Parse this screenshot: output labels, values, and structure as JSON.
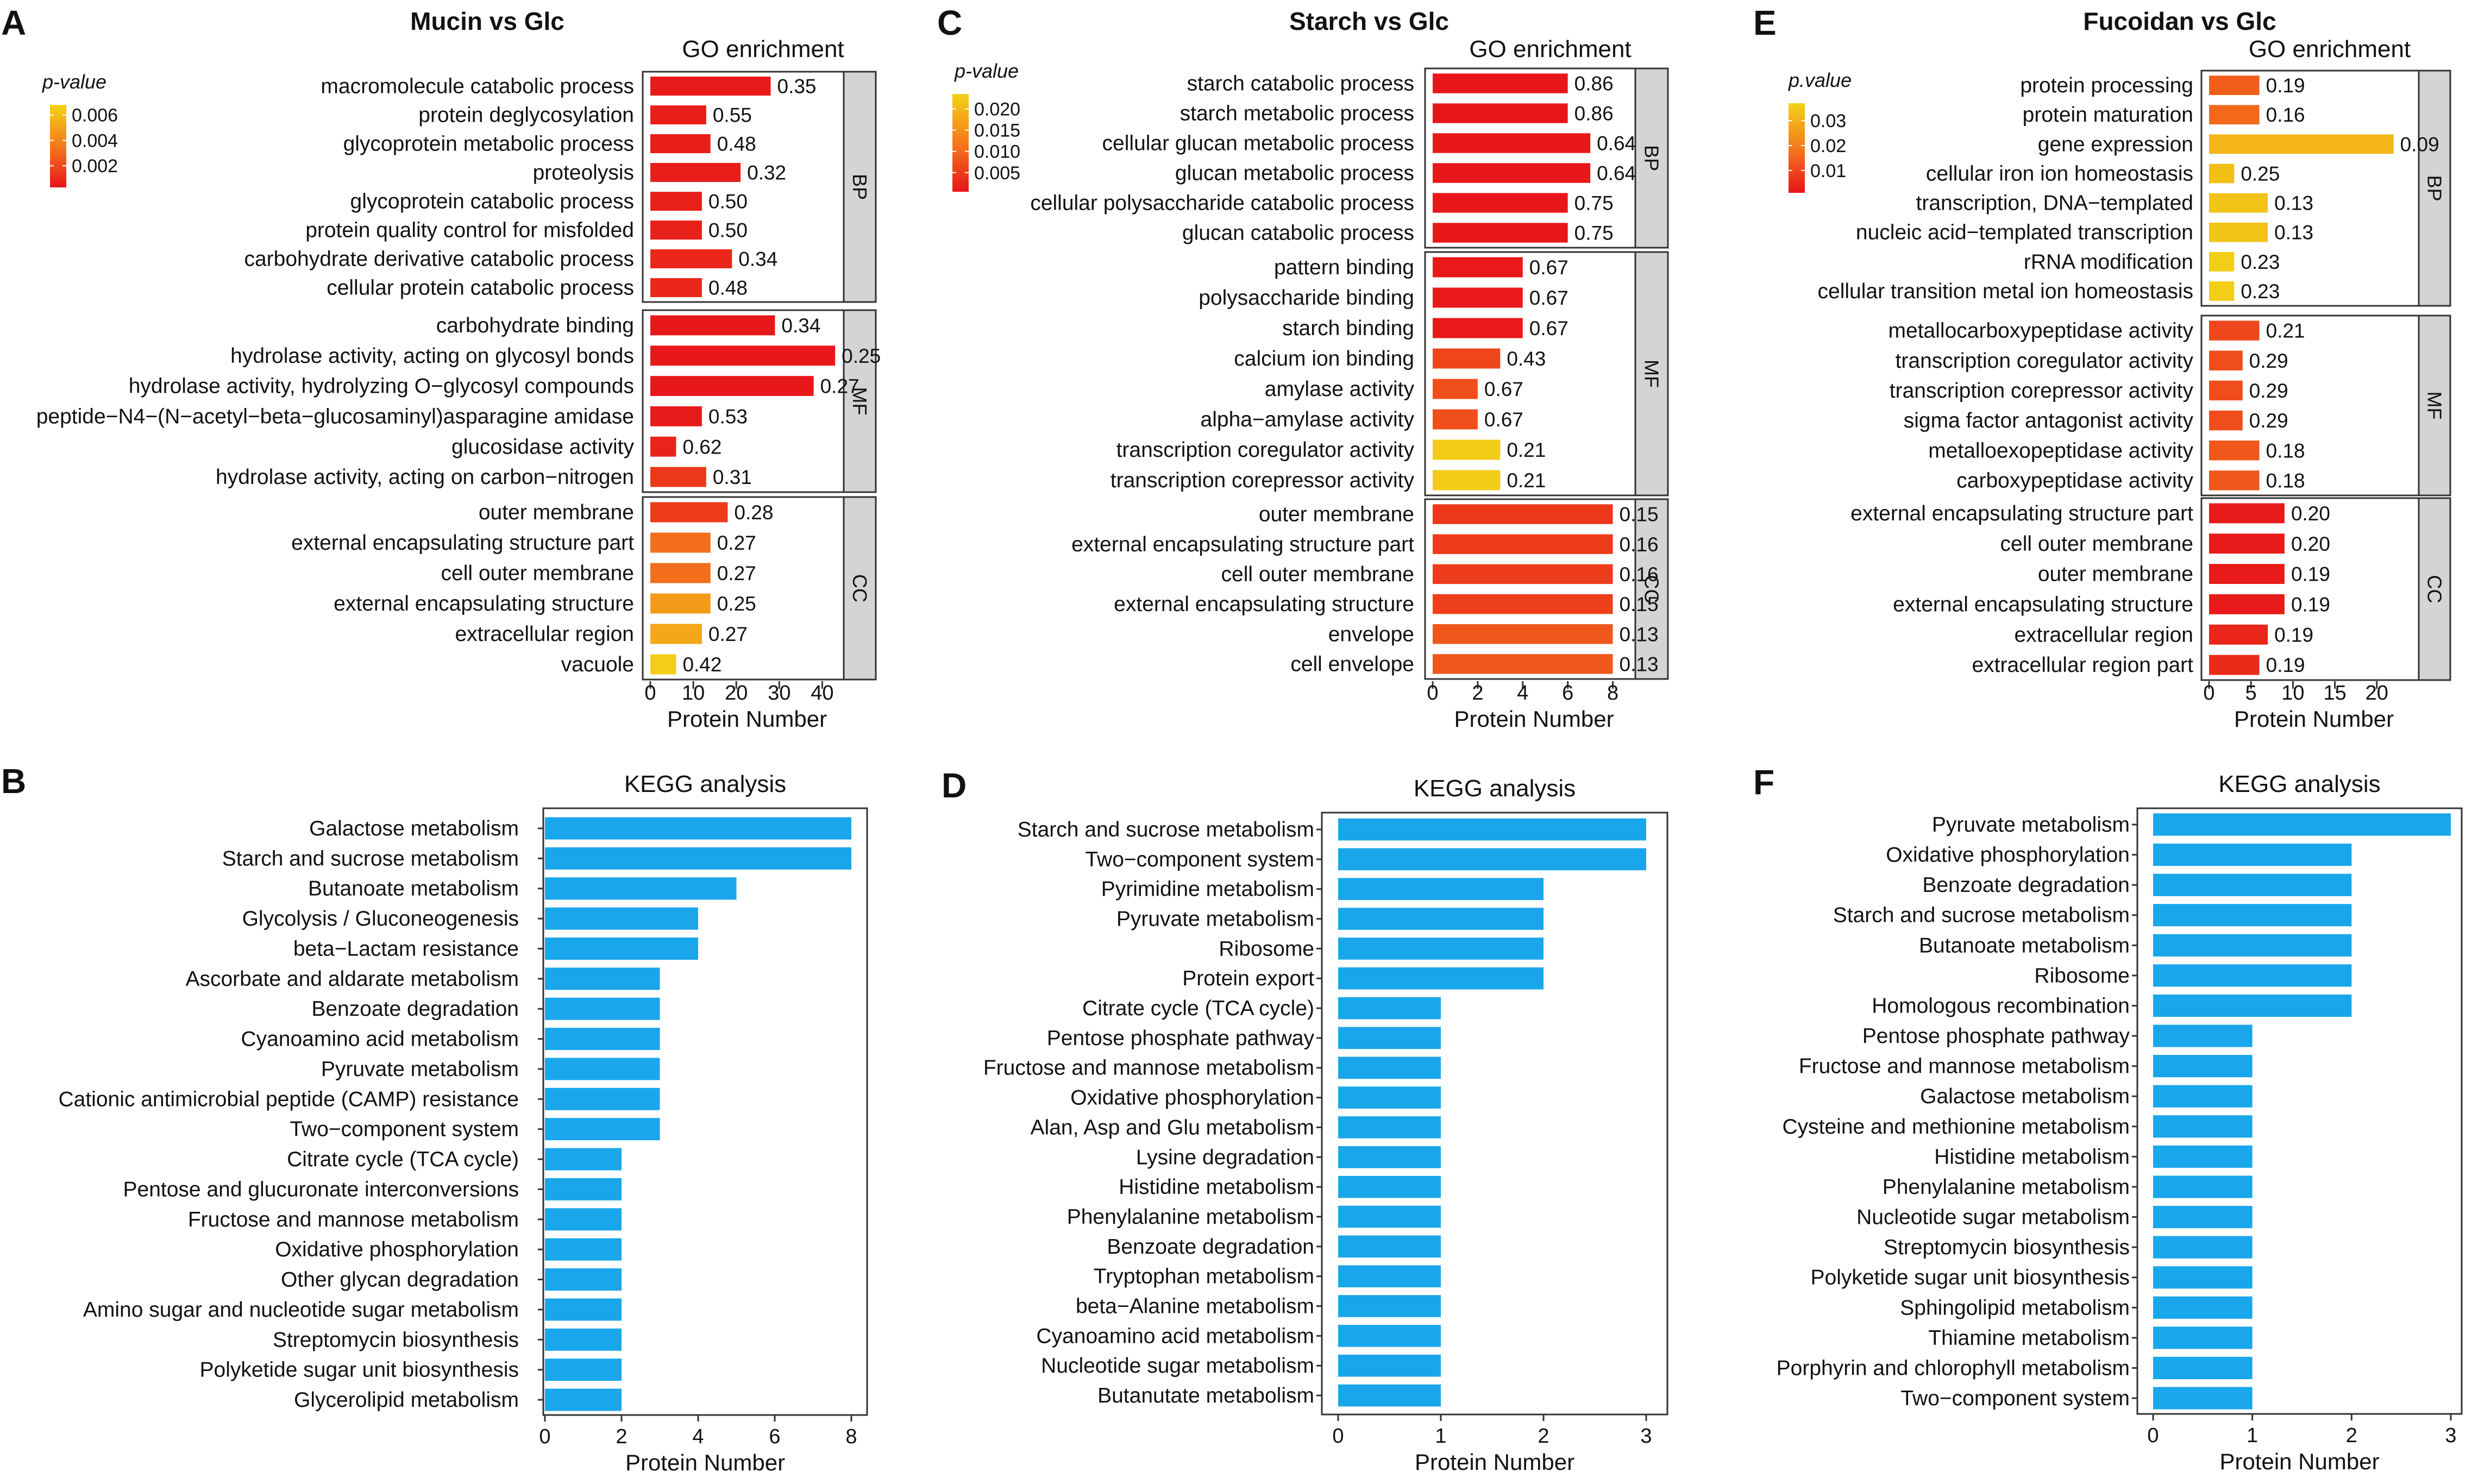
{
  "colors": {
    "kegg_bar": "#1aa6ea",
    "strip_fill": "#d4d4d4",
    "low_p": "#e8141a",
    "mid_p": "#f47a1c",
    "high_p": "#f2d316"
  },
  "chart_data": [
    {
      "panel": "A",
      "type": "bar",
      "orientation": "horizontal",
      "title": "Mucin vs Glc",
      "subtitle": "GO enrichment",
      "xlabel": "Protein Number",
      "xlim": [
        0,
        45
      ],
      "xticks": [
        0,
        10,
        20,
        30,
        40
      ],
      "legend": {
        "title": "p-value",
        "ticks": [
          "0.006",
          "0.004",
          "0.002"
        ],
        "range": [
          0.0003,
          0.0068
        ]
      },
      "groups": [
        {
          "name": "BP",
          "terms": [
            {
              "term": "macromolecule catabolic process",
              "value": 28,
              "label": "0.35",
              "p": 0.0005
            },
            {
              "term": "protein deglycosylation",
              "value": 13,
              "label": "0.55",
              "p": 0.0006
            },
            {
              "term": "glycoprotein metabolic process",
              "value": 14,
              "label": "0.48",
              "p": 0.0006
            },
            {
              "term": "proteolysis",
              "value": 21,
              "label": "0.32",
              "p": 0.0006
            },
            {
              "term": "glycoprotein catabolic process",
              "value": 12,
              "label": "0.50",
              "p": 0.0007
            },
            {
              "term": "protein quality control for misfolded",
              "value": 12,
              "label": "0.50",
              "p": 0.0007
            },
            {
              "term": "carbohydrate derivative catabolic process",
              "value": 19,
              "label": "0.34",
              "p": 0.0009
            },
            {
              "term": "cellular protein catabolic process",
              "value": 12,
              "label": "0.48",
              "p": 0.0009
            }
          ]
        },
        {
          "name": "MF",
          "terms": [
            {
              "term": "carbohydrate binding",
              "value": 29,
              "label": "0.34",
              "p": 0.0004
            },
            {
              "term": "hydrolase activity, acting on glycosyl bonds",
              "value": 43,
              "label": "0.25",
              "p": 0.0004
            },
            {
              "term": "hydrolase activity, hydrolyzing O−glycosyl compounds",
              "value": 38,
              "label": "0.27",
              "p": 0.0004
            },
            {
              "term": "peptide−N4−(N−acetyl−beta−glucosaminyl)asparagine amidase",
              "value": 12,
              "label": "0.53",
              "p": 0.0005
            },
            {
              "term": "glucosidase activity",
              "value": 6,
              "label": "0.62",
              "p": 0.0008
            },
            {
              "term": "hydrolase activity, acting on carbon−nitrogen",
              "value": 13,
              "label": "0.31",
              "p": 0.0014
            }
          ]
        },
        {
          "name": "CC",
          "terms": [
            {
              "term": "outer membrane",
              "value": 18,
              "label": "0.28",
              "p": 0.0015
            },
            {
              "term": "external encapsulating structure part",
              "value": 14,
              "label": "0.27",
              "p": 0.0032
            },
            {
              "term": "cell outer membrane",
              "value": 14,
              "label": "0.27",
              "p": 0.0032
            },
            {
              "term": "external encapsulating structure",
              "value": 14,
              "label": "0.25",
              "p": 0.0048
            },
            {
              "term": "extracellular region",
              "value": 12,
              "label": "0.27",
              "p": 0.0052
            },
            {
              "term": "vacuole",
              "value": 6,
              "label": "0.42",
              "p": 0.0066
            }
          ]
        }
      ]
    },
    {
      "panel": "C",
      "type": "bar",
      "orientation": "horizontal",
      "title": "Starch vs Glc",
      "subtitle": "GO enrichment",
      "xlabel": "Protein Number",
      "xlim": [
        0,
        9
      ],
      "xticks": [
        0,
        2,
        4,
        6,
        8
      ],
      "legend": {
        "title": "p-value",
        "ticks": [
          "0.020",
          "0.015",
          "0.010",
          "0.005"
        ],
        "range": [
          0.0005,
          0.0235
        ]
      },
      "groups": [
        {
          "name": "BP",
          "terms": [
            {
              "term": "starch catabolic process",
              "value": 6,
              "label": "0.86",
              "p": 0.0007
            },
            {
              "term": "starch metabolic process",
              "value": 6,
              "label": "0.86",
              "p": 0.0007
            },
            {
              "term": "cellular glucan metabolic process",
              "value": 7,
              "label": "0.64",
              "p": 0.0008
            },
            {
              "term": "glucan metabolic process",
              "value": 7,
              "label": "0.64",
              "p": 0.0008
            },
            {
              "term": "cellular polysaccharide catabolic process",
              "value": 6,
              "label": "0.75",
              "p": 0.0009
            },
            {
              "term": "glucan catabolic process",
              "value": 6,
              "label": "0.75",
              "p": 0.0009
            }
          ]
        },
        {
          "name": "MF",
          "terms": [
            {
              "term": "pattern binding",
              "value": 4,
              "label": "0.67",
              "p": 0.001
            },
            {
              "term": "polysaccharide binding",
              "value": 4,
              "label": "0.67",
              "p": 0.001
            },
            {
              "term": "starch binding",
              "value": 4,
              "label": "0.67",
              "p": 0.001
            },
            {
              "term": "calcium ion binding",
              "value": 3,
              "label": "0.43",
              "p": 0.006
            },
            {
              "term": "amylase activity",
              "value": 2,
              "label": "0.67",
              "p": 0.0072
            },
            {
              "term": "alpha−amylase activity",
              "value": 2,
              "label": "0.67",
              "p": 0.0072
            },
            {
              "term": "transcription coregulator activity",
              "value": 3,
              "label": "0.21",
              "p": 0.0225
            },
            {
              "term": "transcription corepressor activity",
              "value": 3,
              "label": "0.21",
              "p": 0.0225
            }
          ]
        },
        {
          "name": "CC",
          "terms": [
            {
              "term": "outer membrane",
              "value": 8,
              "label": "0.15",
              "p": 0.0045
            },
            {
              "term": "external encapsulating structure part",
              "value": 8,
              "label": "0.16",
              "p": 0.005
            },
            {
              "term": "cell outer membrane",
              "value": 8,
              "label": "0.16",
              "p": 0.005
            },
            {
              "term": "external encapsulating structure",
              "value": 8,
              "label": "0.15",
              "p": 0.0055
            },
            {
              "term": "envelope",
              "value": 8,
              "label": "0.13",
              "p": 0.008
            },
            {
              "term": "cell envelope",
              "value": 8,
              "label": "0.13",
              "p": 0.008
            }
          ]
        }
      ]
    },
    {
      "panel": "E",
      "type": "bar",
      "orientation": "horizontal",
      "title": "Fucoidan vs Glc",
      "subtitle": "GO enrichment",
      "xlabel": "Protein Number",
      "xlim": [
        0,
        25
      ],
      "xticks": [
        0,
        5,
        10,
        15,
        20
      ],
      "legend": {
        "title": "p.value",
        "ticks": [
          "0.03",
          "0.02",
          "0.01"
        ],
        "range": [
          0.001,
          0.037
        ]
      },
      "groups": [
        {
          "name": "BP",
          "terms": [
            {
              "term": "protein processing",
              "value": 6,
              "label": "0.19",
              "p": 0.014
            },
            {
              "term": "protein maturation",
              "value": 6,
              "label": "0.16",
              "p": 0.016
            },
            {
              "term": "gene expression",
              "value": 22,
              "label": "0.09",
              "p": 0.031
            },
            {
              "term": "cellular iron ion homeostasis",
              "value": 3,
              "label": "0.25",
              "p": 0.033
            },
            {
              "term": "transcription, DNA−templated",
              "value": 7,
              "label": "0.13",
              "p": 0.034
            },
            {
              "term": "nucleic acid−templated transcription",
              "value": 7,
              "label": "0.13",
              "p": 0.034
            },
            {
              "term": "rRNA modification",
              "value": 3,
              "label": "0.23",
              "p": 0.036
            },
            {
              "term": "cellular transition metal ion homeostasis",
              "value": 3,
              "label": "0.23",
              "p": 0.036
            }
          ]
        },
        {
          "name": "MF",
          "terms": [
            {
              "term": "metallocarboxypeptidase activity",
              "value": 6,
              "label": "0.21",
              "p": 0.01
            },
            {
              "term": "transcription coregulator activity",
              "value": 4,
              "label": "0.29",
              "p": 0.011
            },
            {
              "term": "transcription corepressor activity",
              "value": 4,
              "label": "0.29",
              "p": 0.011
            },
            {
              "term": "sigma factor antagonist activity",
              "value": 4,
              "label": "0.29",
              "p": 0.011
            },
            {
              "term": "metalloexopeptidase activity",
              "value": 6,
              "label": "0.18",
              "p": 0.013
            },
            {
              "term": "carboxypeptidase activity",
              "value": 6,
              "label": "0.18",
              "p": 0.013
            }
          ]
        },
        {
          "name": "CC",
          "terms": [
            {
              "term": "external encapsulating structure part",
              "value": 9,
              "label": "0.20",
              "p": 0.002
            },
            {
              "term": "cell outer membrane",
              "value": 9,
              "label": "0.20",
              "p": 0.002
            },
            {
              "term": "outer membrane",
              "value": 9,
              "label": "0.19",
              "p": 0.002
            },
            {
              "term": "external encapsulating structure",
              "value": 9,
              "label": "0.19",
              "p": 0.002
            },
            {
              "term": "extracellular region",
              "value": 7,
              "label": "0.19",
              "p": 0.004
            },
            {
              "term": "extracellular region part",
              "value": 6,
              "label": "0.19",
              "p": 0.005
            }
          ]
        }
      ]
    },
    {
      "panel": "B",
      "type": "bar",
      "orientation": "horizontal",
      "title": "KEGG analysis",
      "xlabel": "Protein Number",
      "xlim": [
        0,
        8.8
      ],
      "xticks": [
        0,
        2,
        4,
        6,
        8
      ],
      "categories": [
        "Galactose metabolism",
        "Starch and sucrose metabolism",
        "Butanoate metabolism",
        "Glycolysis / Gluconeogenesis",
        "beta−Lactam resistance",
        "Ascorbate and aldarate metabolism",
        "Benzoate degradation",
        "Cyanoamino acid metabolism",
        "Pyruvate metabolism",
        "Cationic antimicrobial peptide (CAMP) resistance",
        "Two−component system",
        "Citrate cycle (TCA cycle)",
        "Pentose and glucuronate interconversions",
        "Fructose and mannose metabolism",
        "Oxidative phosphorylation",
        "Other glycan degradation",
        "Amino sugar and nucleotide sugar metabolism",
        "Streptomycin biosynthesis",
        "Polyketide sugar unit biosynthesis",
        "Glycerolipid metabolism"
      ],
      "values": [
        8,
        8,
        5,
        4,
        4,
        3,
        3,
        3,
        3,
        3,
        3,
        2,
        2,
        2,
        2,
        2,
        2,
        2,
        2,
        2
      ]
    },
    {
      "panel": "D",
      "type": "bar",
      "orientation": "horizontal",
      "title": "KEGG analysis",
      "xlabel": "Protein Number",
      "xlim": [
        0,
        3.3
      ],
      "xticks": [
        0,
        1,
        2,
        3
      ],
      "categories": [
        "Starch and sucrose metabolism",
        "Two−component system",
        "Pyrimidine metabolism",
        "Pyruvate metabolism",
        "Ribosome",
        "Protein export",
        "Citrate cycle (TCA cycle)",
        "Pentose phosphate pathway",
        "Fructose and mannose metabolism",
        "Oxidative phosphorylation",
        "Alan, Asp and Glu metabolism",
        "Lysine degradation",
        "Histidine metabolism",
        "Phenylalanine metabolism",
        "Benzoate degradation",
        "Tryptophan metabolism",
        "beta−Alanine metabolism",
        "Cyanoamino acid metabolism",
        "Nucleotide sugar metabolism",
        "Butanutate metabolism"
      ],
      "values": [
        3,
        3,
        2,
        2,
        2,
        2,
        1,
        1,
        1,
        1,
        1,
        1,
        1,
        1,
        1,
        1,
        1,
        1,
        1,
        1
      ]
    },
    {
      "panel": "F",
      "type": "bar",
      "orientation": "horizontal",
      "title": "KEGG analysis",
      "xlabel": "Protein Number",
      "xlim": [
        0,
        3.1
      ],
      "xticks": [
        0,
        1,
        2,
        3
      ],
      "categories": [
        "Pyruvate metabolism",
        "Oxidative phosphorylation",
        "Benzoate degradation",
        "Starch and sucrose metabolism",
        "Butanoate metabolism",
        "Ribosome",
        "Homologous recombination",
        "Pentose phosphate pathway",
        "Fructose and mannose metabolism",
        "Galactose metabolism",
        "Cysteine and methionine metabolism",
        "Histidine metabolism",
        "Phenylalanine metabolism",
        "Nucleotide sugar metabolism",
        "Streptomycin biosynthesis",
        "Polyketide sugar unit biosynthesis",
        "Sphingolipid metabolism",
        "Thiamine metabolism",
        "Porphyrin and chlorophyll metabolism",
        "Two−component system"
      ],
      "values": [
        3,
        2,
        2,
        2,
        2,
        2,
        2,
        1,
        1,
        1,
        1,
        1,
        1,
        1,
        1,
        1,
        1,
        1,
        1,
        1
      ]
    }
  ]
}
